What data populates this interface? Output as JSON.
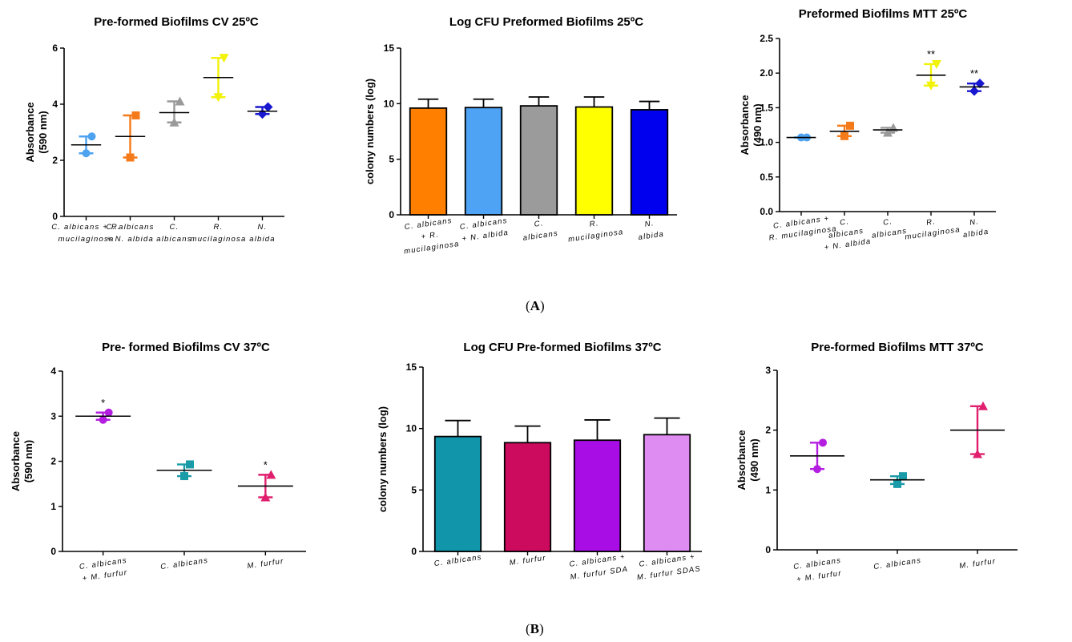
{
  "figure": {
    "label_a": "A",
    "label_b": "B"
  },
  "chart_data": [
    {
      "id": "a1",
      "type": "scatter",
      "title": "Pre-formed Biofilms CV 25ºC",
      "ylabel": "Absorbance (590 nm)",
      "ylim": [
        0,
        6
      ],
      "yticks": [
        0,
        2,
        4,
        6
      ],
      "ytick_labels": [
        "0",
        "2",
        "4",
        "6"
      ],
      "categories": [
        "C. albicans + R. mucilaginosa",
        "C. albicans + N. albida",
        "C. albicans",
        "R. mucilaginosa",
        "N. albida"
      ],
      "category_lines": [
        [
          "C. albicans +  R.",
          "mucilaginosa"
        ],
        [
          "C. albicans",
          "+ N. albida"
        ],
        [
          "C.",
          "albicans"
        ],
        [
          "R.",
          "mucilaginosa"
        ],
        [
          "N.",
          "albida"
        ]
      ],
      "colors": [
        "#4da3f0",
        "#f47a1a",
        "#9a9a9a",
        "#f2f20a",
        "#1818d0"
      ],
      "means": [
        2.55,
        2.85,
        3.7,
        4.95,
        3.75
      ],
      "low": [
        2.25,
        2.1,
        3.35,
        4.25,
        3.65
      ],
      "high": [
        2.85,
        3.6,
        4.1,
        5.65,
        3.9
      ],
      "points": [
        [
          2.25,
          2.85
        ],
        [
          2.1,
          3.6
        ],
        [
          3.35,
          4.1
        ],
        [
          4.25,
          5.65
        ],
        [
          3.65,
          3.9
        ]
      ],
      "markers": [
        "circle",
        "square",
        "triangle-up",
        "triangle-down",
        "diamond"
      ],
      "significance": [
        "",
        "",
        "",
        "",
        ""
      ]
    },
    {
      "id": "a2",
      "type": "bar",
      "title": "Log CFU Preformed Biofilms 25ºC",
      "ylabel": "colony numbers (log)",
      "ylim": [
        0,
        15
      ],
      "yticks": [
        0,
        5,
        10,
        15
      ],
      "ytick_labels": [
        "0",
        "5",
        "10",
        "15"
      ],
      "categories": [
        "C. albicans + R. mucilaginosa",
        "C. albicans + N. albida",
        "C. albicans",
        "R. mucilaginosa",
        "N. albida"
      ],
      "category_lines": [
        [
          "C. albicans",
          "+ R.",
          "mucilaginosa"
        ],
        [
          "C. albicans",
          "+ N. albida"
        ],
        [
          "C.",
          "albicans"
        ],
        [
          "R.",
          "mucilaginosa"
        ],
        [
          "N.",
          "albida"
        ]
      ],
      "colors": [
        "#ff7f00",
        "#4fa3f5",
        "#9b9b9b",
        "#ffff00",
        "#0000ee"
      ],
      "values": [
        9.6,
        9.65,
        9.8,
        9.7,
        9.45
      ],
      "errors": [
        0.8,
        0.75,
        0.8,
        0.9,
        0.75
      ]
    },
    {
      "id": "a3",
      "type": "scatter",
      "title": "Preformed Biofilms MTT 25ºC",
      "ylabel": "Absorbance (490 nm)",
      "ylim": [
        0,
        2.5
      ],
      "yticks": [
        0,
        0.5,
        1.0,
        1.5,
        2.0,
        2.5
      ],
      "ytick_labels": [
        "0.0",
        "0.5",
        "1.0",
        "1.5",
        "2.0",
        "2.5"
      ],
      "categories": [
        "C. albicans + R. mucilaginosa",
        "C. albicans + N. albida",
        "C. albicans",
        "R. mucilaginosa",
        "N. albida"
      ],
      "category_lines": [
        [
          "C. albicans +",
          "R. mucilaginosa"
        ],
        [
          "C.",
          "albicans",
          "+ N. albida"
        ],
        [
          "C.",
          "albicans"
        ],
        [
          "R.",
          "mucilaginosa"
        ],
        [
          "N.",
          "albida"
        ]
      ],
      "colors": [
        "#4da3f0",
        "#f47a1a",
        "#9a9a9a",
        "#f2f20a",
        "#1818d0"
      ],
      "means": [
        1.07,
        1.16,
        1.18,
        1.97,
        1.8
      ],
      "low": [
        1.07,
        1.09,
        1.14,
        1.82,
        1.74
      ],
      "high": [
        1.07,
        1.24,
        1.21,
        2.13,
        1.85
      ],
      "points": [
        [
          1.07,
          1.07
        ],
        [
          1.09,
          1.24
        ],
        [
          1.14,
          1.21
        ],
        [
          1.82,
          2.13
        ],
        [
          1.74,
          1.85
        ]
      ],
      "markers": [
        "circle",
        "square",
        "triangle-up",
        "triangle-down",
        "diamond"
      ],
      "significance": [
        "",
        "",
        "",
        "**",
        "**"
      ]
    },
    {
      "id": "b1",
      "type": "scatter",
      "title": "Pre- formed Biofilms CV 37ºC",
      "ylabel": "Absorbance (590 nm)",
      "ylim": [
        0,
        4
      ],
      "yticks": [
        0,
        1,
        2,
        3,
        4
      ],
      "ytick_labels": [
        "0",
        "1",
        "2",
        "3",
        "4"
      ],
      "categories": [
        "C. albicans + M. furfur",
        "C. albicans",
        "M. furfur"
      ],
      "category_lines": [
        [
          "C. albicans",
          "+ M. furfur"
        ],
        [
          "C. albicans"
        ],
        [
          "M. furfur"
        ]
      ],
      "colors": [
        "#b41ee0",
        "#1a9ba8",
        "#e0206e"
      ],
      "means": [
        3.0,
        1.8,
        1.45
      ],
      "low": [
        2.92,
        1.67,
        1.2
      ],
      "high": [
        3.08,
        1.93,
        1.7
      ],
      "points": [
        [
          2.92,
          3.08
        ],
        [
          1.67,
          1.93
        ],
        [
          1.2,
          1.7
        ]
      ],
      "markers": [
        "circle",
        "square",
        "triangle-up"
      ],
      "significance": [
        "*",
        "",
        "*"
      ]
    },
    {
      "id": "b2",
      "type": "bar",
      "title": "Log CFU Pre-formed Biofilms 37ºC",
      "ylabel": "colony numbers (log)",
      "ylim": [
        0,
        15
      ],
      "yticks": [
        0,
        5,
        10,
        15
      ],
      "ytick_labels": [
        "0",
        "5",
        "10",
        "15"
      ],
      "categories": [
        "C. albicans",
        "M. furfur",
        "C. albicans + M. furfur SDA",
        "C. albicans + M. furfur SDAS"
      ],
      "category_lines": [
        [
          "C. albicans"
        ],
        [
          "M. furfur"
        ],
        [
          "C. albicans +",
          "M. furfur SDA"
        ],
        [
          "C. albicans +",
          "M. furfur SDAS"
        ]
      ],
      "colors": [
        "#1195ab",
        "#cc0a5e",
        "#a80de6",
        "#df8cf2"
      ],
      "values": [
        9.35,
        8.85,
        9.05,
        9.5
      ],
      "errors": [
        1.3,
        1.35,
        1.65,
        1.35
      ]
    },
    {
      "id": "b3",
      "type": "scatter",
      "title": "Pre-formed Biofilms MTT 37ºC",
      "ylabel": "Absorbance (490 nm)",
      "ylim": [
        0,
        3
      ],
      "yticks": [
        0,
        1,
        2,
        3
      ],
      "ytick_labels": [
        "0",
        "1",
        "2",
        "3"
      ],
      "categories": [
        "C. albicans + M. furfur",
        "C. albicans",
        "M. furfur"
      ],
      "category_lines": [
        [
          "C. albicans",
          "+ M. furfur"
        ],
        [
          "C. albicans"
        ],
        [
          "M. furfur"
        ]
      ],
      "colors": [
        "#b41ee0",
        "#1a9ba8",
        "#e0206e"
      ],
      "means": [
        1.57,
        1.17,
        2.0
      ],
      "low": [
        1.35,
        1.1,
        1.6
      ],
      "high": [
        1.79,
        1.23,
        2.4
      ],
      "points": [
        [
          1.35,
          1.79
        ],
        [
          1.1,
          1.23
        ],
        [
          1.6,
          2.4
        ]
      ],
      "markers": [
        "circle",
        "square",
        "triangle-up"
      ],
      "significance": [
        "",
        "",
        ""
      ]
    }
  ]
}
